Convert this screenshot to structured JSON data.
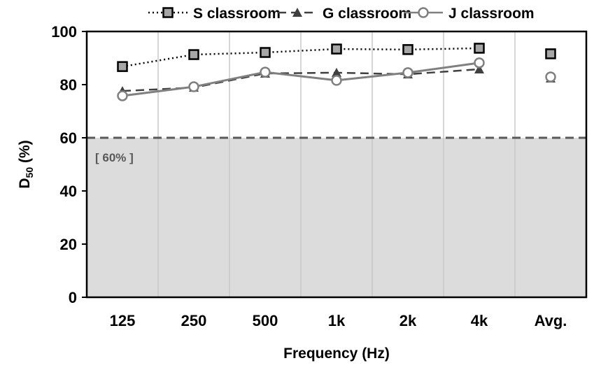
{
  "chart_data": {
    "type": "line",
    "title": "",
    "xlabel": "Frequency (Hz)",
    "ylabel_main": "D",
    "ylabel_sub": "50",
    "ylabel_suffix": " (%)",
    "categories": [
      "125",
      "250",
      "500",
      "1k",
      "2k",
      "4k",
      "Avg."
    ],
    "ylim": [
      0,
      100
    ],
    "yticks": [
      "0",
      "20",
      "40",
      "60",
      "80",
      "100"
    ],
    "grid": "vertical",
    "legend_placement": "top",
    "threshold": {
      "value": 60,
      "label": "[ 60% ]",
      "shade_color": "#dcdcdc"
    },
    "series": [
      {
        "name": "S classroom",
        "marker": "square",
        "line": "dotted",
        "color": "#000000",
        "fill": "#a6a6a6",
        "values": [
          86.8,
          91.3,
          92.1,
          93.4,
          93.2,
          93.7,
          91.6
        ]
      },
      {
        "name": "G classroom",
        "marker": "triangle",
        "line": "dashed",
        "color": "#404040",
        "fill": "#404040",
        "values": [
          77.6,
          78.9,
          84.2,
          84.5,
          83.9,
          85.8,
          82.4
        ]
      },
      {
        "name": "J classroom",
        "marker": "circle",
        "line": "solid",
        "color": "#808080",
        "fill": "#ffffff",
        "values": [
          75.8,
          79.2,
          84.7,
          81.6,
          84.5,
          88.2,
          82.9
        ]
      }
    ]
  }
}
